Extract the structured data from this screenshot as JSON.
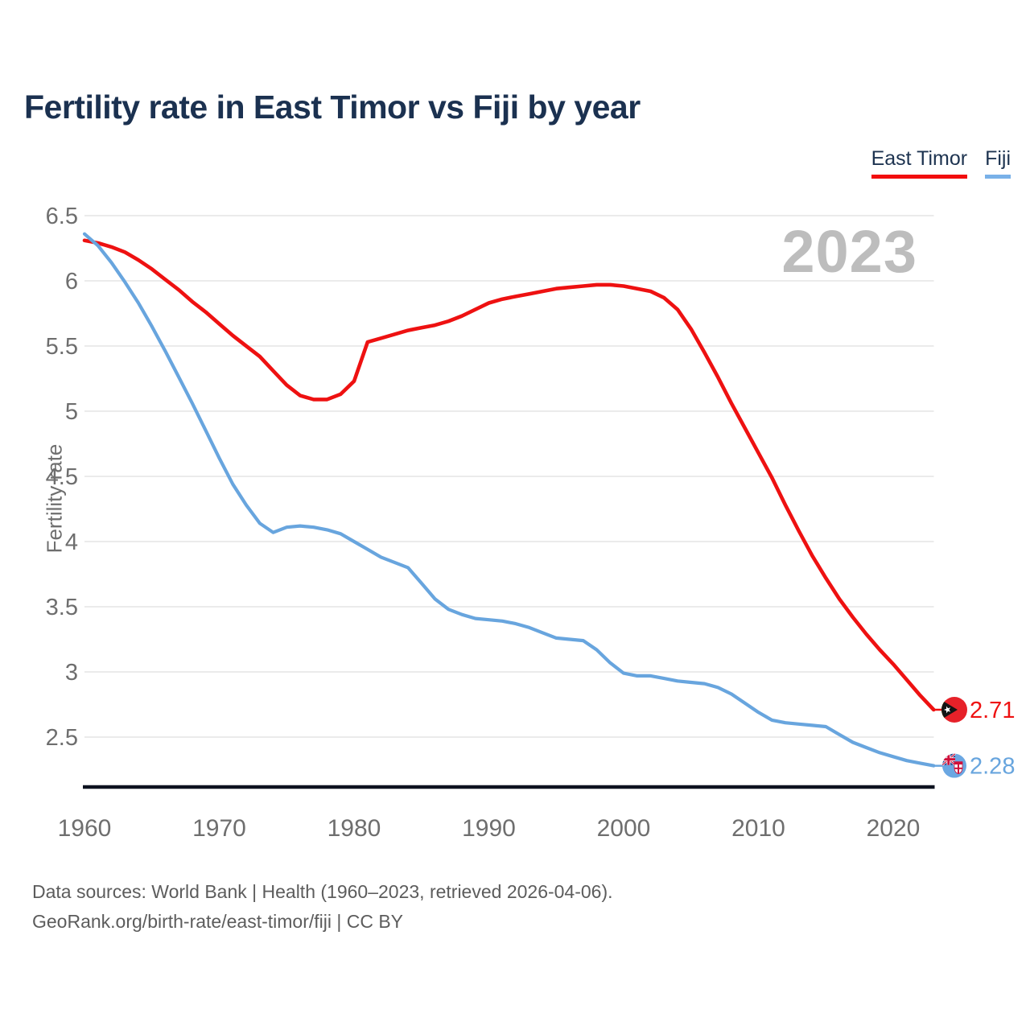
{
  "title": "Fertility rate in East Timor vs Fiji by year",
  "watermark": "2023",
  "legend": [
    {
      "label": "East Timor",
      "color": "#f20d0d"
    },
    {
      "label": "Fiji",
      "color": "#79b1e8"
    }
  ],
  "y_axis": {
    "label": "Fertility rate",
    "ticks": [
      6.5,
      6,
      5.5,
      5,
      4.5,
      4,
      3.5,
      3,
      2.5
    ]
  },
  "x_axis": {
    "ticks": [
      1960,
      1970,
      1980,
      1990,
      2000,
      2010,
      2020
    ]
  },
  "end_labels": [
    {
      "series": "East Timor",
      "value": "2.71",
      "color": "#ee1111"
    },
    {
      "series": "Fiji",
      "value": "2.28",
      "color": "#68a5de"
    }
  ],
  "footer": {
    "line1": "Data sources: World Bank | Health (1960–2023, retrieved 2026-04-06).",
    "line2": "GeoRank.org/birth-rate/east-timor/fiji | CC BY"
  },
  "chart_data": {
    "type": "line",
    "title": "Fertility rate in East Timor vs Fiji by year",
    "xlabel": "year",
    "ylabel": "Fertility rate",
    "ylim": [
      2.1,
      6.5
    ],
    "xlim": [
      1960,
      2023
    ],
    "grid": "horizontal",
    "legend_position": "top-right",
    "x": [
      1960,
      1961,
      1962,
      1963,
      1964,
      1965,
      1966,
      1967,
      1968,
      1969,
      1970,
      1971,
      1972,
      1973,
      1974,
      1975,
      1976,
      1977,
      1978,
      1979,
      1980,
      1981,
      1982,
      1983,
      1984,
      1985,
      1986,
      1987,
      1988,
      1989,
      1990,
      1991,
      1992,
      1993,
      1994,
      1995,
      1996,
      1997,
      1998,
      1999,
      2000,
      2001,
      2002,
      2003,
      2004,
      2005,
      2006,
      2007,
      2008,
      2009,
      2010,
      2011,
      2012,
      2013,
      2014,
      2015,
      2016,
      2017,
      2018,
      2019,
      2020,
      2021,
      2022,
      2023
    ],
    "series": [
      {
        "name": "East Timor",
        "color": "#ee1111",
        "values": [
          6.31,
          6.29,
          6.26,
          6.22,
          6.16,
          6.09,
          6.01,
          5.93,
          5.84,
          5.76,
          5.67,
          5.58,
          5.5,
          5.42,
          5.31,
          5.2,
          5.12,
          5.09,
          5.09,
          5.13,
          5.23,
          5.53,
          5.56,
          5.59,
          5.62,
          5.64,
          5.66,
          5.69,
          5.73,
          5.78,
          5.83,
          5.86,
          5.88,
          5.9,
          5.92,
          5.94,
          5.95,
          5.96,
          5.97,
          5.97,
          5.96,
          5.94,
          5.92,
          5.87,
          5.78,
          5.63,
          5.45,
          5.26,
          5.06,
          4.87,
          4.68,
          4.49,
          4.28,
          4.08,
          3.89,
          3.72,
          3.56,
          3.42,
          3.29,
          3.17,
          3.06,
          2.94,
          2.82,
          2.71
        ]
      },
      {
        "name": "Fiji",
        "color": "#68a5de",
        "values": [
          6.36,
          6.27,
          6.14,
          5.99,
          5.83,
          5.65,
          5.46,
          5.26,
          5.06,
          4.85,
          4.64,
          4.44,
          4.28,
          4.14,
          4.07,
          4.11,
          4.12,
          4.11,
          4.09,
          4.06,
          4.0,
          3.94,
          3.88,
          3.84,
          3.8,
          3.68,
          3.56,
          3.48,
          3.44,
          3.41,
          3.4,
          3.39,
          3.37,
          3.34,
          3.3,
          3.26,
          3.25,
          3.24,
          3.17,
          3.07,
          2.99,
          2.97,
          2.97,
          2.95,
          2.93,
          2.92,
          2.91,
          2.88,
          2.83,
          2.76,
          2.69,
          2.63,
          2.61,
          2.6,
          2.59,
          2.58,
          2.52,
          2.46,
          2.42,
          2.38,
          2.35,
          2.32,
          2.3,
          2.28
        ]
      }
    ]
  }
}
